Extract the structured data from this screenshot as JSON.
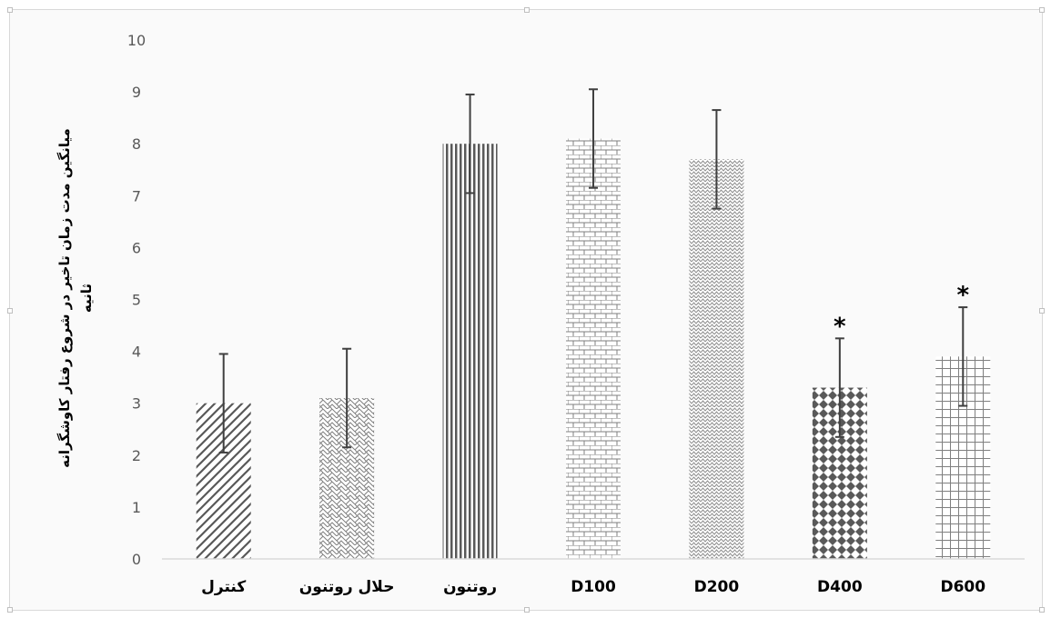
{
  "chart_data": {
    "type": "bar",
    "title": "",
    "xlabel": "",
    "ylabel_line1": "میانگین مدت زمان تاخیر در شروع رفتار کاوشگرانه",
    "ylabel_line2": "ثانیه",
    "ylim": [
      0,
      10
    ],
    "yticks": [
      "0",
      "1",
      "2",
      "3",
      "4",
      "5",
      "6",
      "7",
      "8",
      "9",
      "10"
    ],
    "categories": [
      "کنترل",
      "حلال روتنون",
      "روتنون",
      "D100",
      "D200",
      "D400",
      "D600"
    ],
    "values": [
      3.0,
      3.1,
      8.0,
      8.1,
      7.7,
      3.3,
      3.9
    ],
    "errors": [
      0.95,
      0.95,
      0.95,
      0.95,
      0.95,
      0.95,
      0.95
    ],
    "significance": [
      "",
      "",
      "",
      "",
      "",
      "*",
      "*"
    ],
    "patterns": [
      "diag-lines",
      "wave",
      "vertical-lines",
      "brick",
      "zigzag",
      "diamond",
      "grid"
    ],
    "grid": false,
    "legend": "none",
    "colors": {
      "bar": "#595959",
      "axis": "#d9d9d9",
      "error": "#404040"
    }
  }
}
